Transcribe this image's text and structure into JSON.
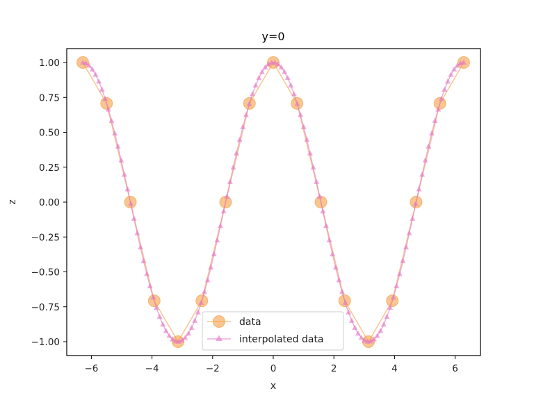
{
  "chart_data": {
    "type": "line",
    "title": "y=0",
    "xlabel": "x",
    "ylabel": "z",
    "xlim": [
      -6.9,
      6.9
    ],
    "ylim": [
      -1.1,
      1.1
    ],
    "grid": false,
    "legend_position": "lower center",
    "x_ticks": [
      -6,
      -4,
      -2,
      0,
      2,
      4,
      6
    ],
    "x_tick_labels": [
      "−6",
      "−4",
      "−2",
      "0",
      "2",
      "4",
      "6"
    ],
    "y_ticks": [
      1.0,
      0.75,
      0.5,
      0.25,
      0.0,
      -0.25,
      -0.5,
      -0.75,
      -1.0
    ],
    "y_tick_labels": [
      "1.00",
      "0.75",
      "0.50",
      "0.25",
      "0.00",
      "−0.25",
      "−0.50",
      "−0.75",
      "−1.00"
    ],
    "series": [
      {
        "name": "data",
        "marker": "circle",
        "color": "#f5a04a",
        "x": [
          -6.283,
          -5.498,
          -4.712,
          -3.927,
          -3.142,
          -2.356,
          -1.571,
          -0.785,
          0.0,
          0.785,
          1.571,
          2.356,
          3.142,
          3.927,
          4.712,
          5.498,
          6.283
        ],
        "values": [
          1.0,
          0.707,
          0.0,
          -0.707,
          -1.0,
          -0.707,
          0.0,
          0.707,
          1.0,
          0.707,
          0.0,
          -0.707,
          -1.0,
          -0.707,
          0.0,
          0.707,
          1.0
        ]
      },
      {
        "name": "interpolated data",
        "marker": "triangle",
        "color": "#e377c2",
        "function": "cos(x)",
        "x_range": [
          -6.283,
          6.283
        ],
        "num_points": 120
      }
    ]
  }
}
